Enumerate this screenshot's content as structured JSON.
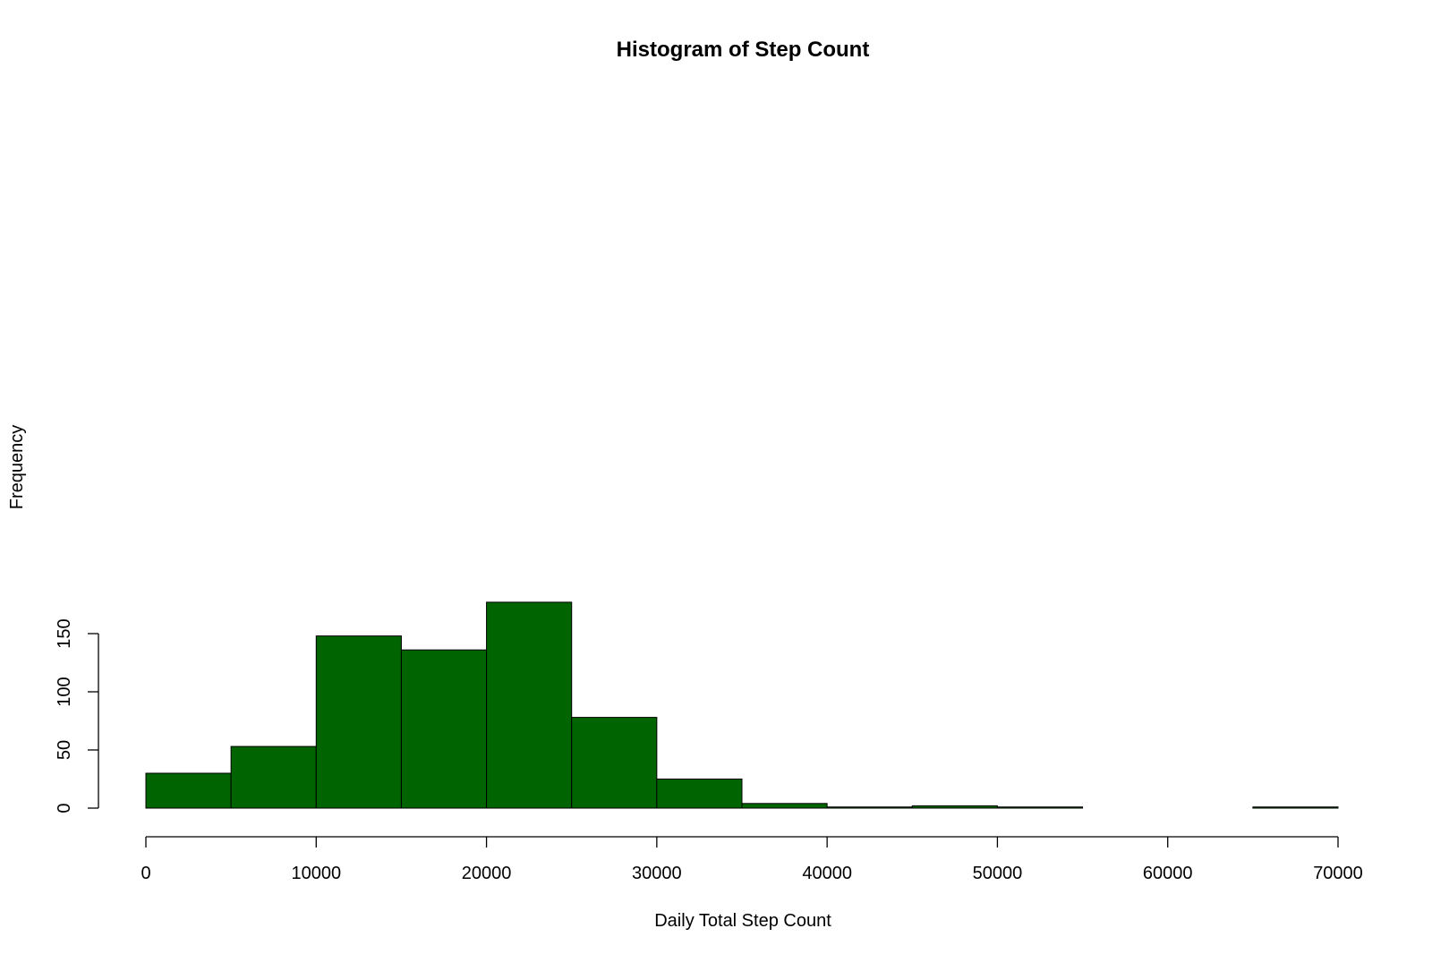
{
  "chart_data": {
    "type": "bar",
    "title": "Histogram of Step Count",
    "xlabel": "Daily Total Step Count",
    "ylabel": "Frequency",
    "bin_edges": [
      0,
      5000,
      10000,
      15000,
      20000,
      25000,
      30000,
      35000,
      40000,
      45000,
      50000,
      55000,
      60000,
      65000,
      70000
    ],
    "values": [
      30,
      53,
      148,
      136,
      177,
      78,
      25,
      4,
      1,
      2,
      1,
      0,
      0,
      1
    ],
    "xlim": [
      0,
      70000
    ],
    "ylim": [
      0,
      177
    ],
    "x_ticks": [
      "0",
      "10000",
      "20000",
      "30000",
      "40000",
      "50000",
      "60000",
      "70000"
    ],
    "y_ticks": [
      "0",
      "50",
      "100",
      "150"
    ],
    "bar_color": "#006400",
    "grid": false,
    "legend": "none"
  }
}
